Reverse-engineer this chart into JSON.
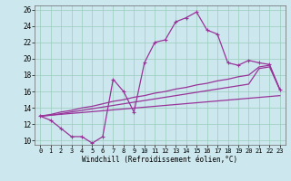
{
  "bg_color": "#cce8ee",
  "line_color": "#993399",
  "grid_color": "#99ccbb",
  "xlabel": "Windchill (Refroidissement éolien,°C)",
  "xlim": [
    -0.5,
    23.5
  ],
  "ylim": [
    9.5,
    26.5
  ],
  "xticks": [
    0,
    1,
    2,
    3,
    4,
    5,
    6,
    7,
    8,
    9,
    10,
    11,
    12,
    13,
    14,
    15,
    16,
    17,
    18,
    19,
    20,
    21,
    22,
    23
  ],
  "yticks": [
    10,
    12,
    14,
    16,
    18,
    20,
    22,
    24,
    26
  ],
  "line1_x": [
    0,
    1,
    2,
    3,
    4,
    5,
    6,
    7,
    8,
    9,
    10,
    11,
    12,
    13,
    14,
    15,
    16,
    17,
    18,
    19,
    20,
    21,
    22,
    23
  ],
  "line1_y": [
    13.0,
    12.5,
    11.5,
    10.5,
    10.5,
    9.7,
    10.5,
    17.5,
    16.0,
    13.5,
    19.5,
    22.0,
    22.3,
    24.5,
    25.0,
    25.7,
    23.5,
    23.0,
    19.5,
    19.2,
    19.8,
    19.5,
    19.3,
    16.2
  ],
  "line2_x": [
    0,
    1,
    2,
    3,
    4,
    5,
    6,
    7,
    8,
    9,
    10,
    11,
    12,
    13,
    14,
    15,
    16,
    17,
    18,
    19,
    20,
    21,
    22,
    23
  ],
  "line2_y": [
    13.0,
    13.2,
    13.5,
    13.7,
    14.0,
    14.2,
    14.5,
    14.8,
    15.0,
    15.3,
    15.5,
    15.8,
    16.0,
    16.3,
    16.5,
    16.8,
    17.0,
    17.3,
    17.5,
    17.8,
    18.0,
    19.0,
    19.2,
    16.2
  ],
  "line3_x": [
    0,
    1,
    2,
    3,
    4,
    5,
    6,
    7,
    8,
    9,
    10,
    11,
    12,
    13,
    14,
    15,
    16,
    17,
    18,
    19,
    20,
    21,
    22,
    23
  ],
  "line3_y": [
    13.0,
    13.1,
    13.3,
    13.5,
    13.7,
    13.9,
    14.1,
    14.3,
    14.5,
    14.7,
    14.9,
    15.1,
    15.3,
    15.5,
    15.7,
    15.9,
    16.1,
    16.3,
    16.5,
    16.7,
    16.9,
    18.8,
    19.0,
    16.2
  ],
  "line4_x": [
    0,
    23
  ],
  "line4_y": [
    13.0,
    15.5
  ]
}
